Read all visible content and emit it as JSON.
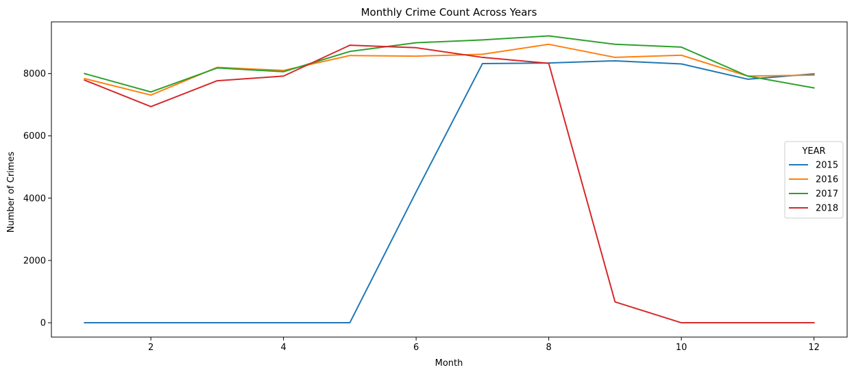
{
  "chart_data": {
    "type": "line",
    "title": "Monthly Crime Count Across Years",
    "xlabel": "Month",
    "ylabel": "Number of Crimes",
    "x": [
      1,
      2,
      3,
      4,
      5,
      6,
      7,
      8,
      9,
      10,
      11,
      12
    ],
    "xlim": [
      0.5,
      12.5
    ],
    "ylim": [
      -460,
      9660
    ],
    "xticks": [
      2,
      4,
      6,
      8,
      10,
      12
    ],
    "yticks": [
      0,
      2000,
      4000,
      6000,
      8000
    ],
    "grid": false,
    "legend": {
      "title": "YEAR",
      "placement": "center-right"
    },
    "series": [
      {
        "name": "2015",
        "color": "#1f77b4",
        "values": [
          0,
          0,
          0,
          0,
          0,
          4200,
          8320,
          8340,
          8410,
          8310,
          7820,
          7990
        ]
      },
      {
        "name": "2016",
        "color": "#ff7f0e",
        "values": [
          7840,
          7310,
          8200,
          8100,
          8580,
          8560,
          8620,
          8940,
          8520,
          8590,
          7920,
          7950
        ]
      },
      {
        "name": "2017",
        "color": "#2ca02c",
        "values": [
          8000,
          7410,
          8180,
          8060,
          8710,
          8990,
          9080,
          9210,
          8940,
          8850,
          7920,
          7540
        ]
      },
      {
        "name": "2018",
        "color": "#d62728",
        "values": [
          7790,
          6940,
          7770,
          7920,
          8910,
          8830,
          8520,
          8330,
          670,
          0,
          0,
          0
        ]
      }
    ]
  }
}
